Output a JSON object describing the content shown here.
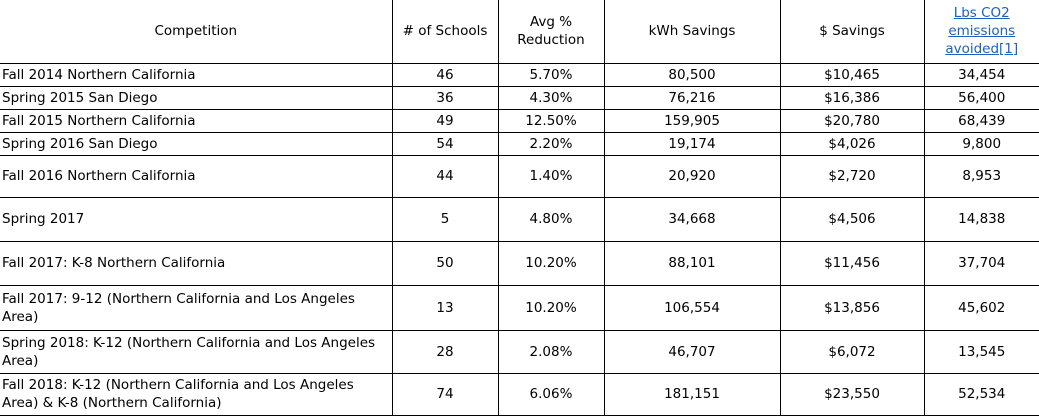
{
  "columns": [
    "Competition",
    "# of Schools",
    "Avg %\nReduction",
    "kWh Savings",
    "$ Savings",
    "Lbs CO2\nemissions\navoided[1]"
  ],
  "link_color": "#1f5fbf",
  "rows": [
    [
      "Fall 2014 Northern California",
      "46",
      "5.70%",
      "80,500",
      "$10,465",
      "34,454"
    ],
    [
      "Spring 2015 San Diego",
      "36",
      "4.30%",
      "76,216",
      "$16,386",
      "56,400"
    ],
    [
      "Fall 2015 Northern California",
      "49",
      "12.50%",
      "159,905",
      "$20,780",
      "68,439"
    ],
    [
      "Spring 2016 San Diego",
      "54",
      "2.20%",
      "19,174",
      "$4,026",
      "9,800"
    ],
    [
      "Fall 2016 Northern California",
      "44",
      "1.40%",
      "20,920",
      "$2,720",
      "8,953"
    ],
    [
      "Spring 2017",
      "5",
      "4.80%",
      "34,668",
      "$4,506",
      "14,838"
    ],
    [
      "Fall 2017: K-8 Northern California",
      "50",
      "10.20%",
      "88,101",
      "$11,456",
      "37,704"
    ],
    [
      "Fall 2017: 9-12 (Northern California and Los Angeles Area)",
      "13",
      "10.20%",
      "106,554",
      "$13,856",
      "45,602"
    ],
    [
      "Spring 2018: K-12 (Northern California and Los Angeles Area)",
      "28",
      "2.08%",
      "46,707",
      "$6,072",
      "13,545"
    ],
    [
      "Fall 2018: K-12 (Northern California and Los Angeles Area) & K-8 (Northern California)",
      "74",
      "6.06%",
      "181,151",
      "$23,550",
      "52,534"
    ]
  ]
}
